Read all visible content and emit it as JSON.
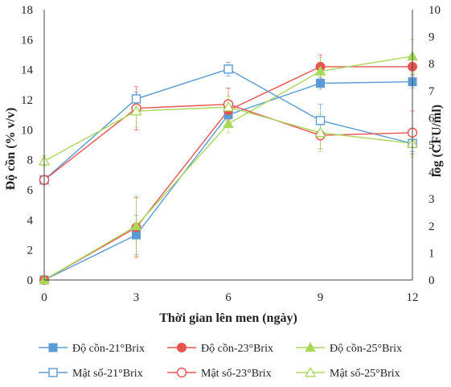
{
  "chart_data": {
    "type": "line",
    "title": "",
    "x": [
      0,
      3,
      6,
      9,
      12
    ],
    "xlabel": "Thời gian lên men (ngày)",
    "ylabel": "Độ cồn (% v/v)",
    "y2label": "log (CFU/ml)",
    "xticks": [
      "0",
      "3",
      "6",
      "9",
      "12"
    ],
    "xlim": [
      0,
      12
    ],
    "ylim": [
      0,
      18
    ],
    "yticks": [
      "0",
      "2",
      "4",
      "6",
      "8",
      "10",
      "12",
      "14",
      "16",
      "18"
    ],
    "y2lim": [
      0,
      10
    ],
    "y2ticks": [
      "0",
      "1",
      "2",
      "3",
      "4",
      "5",
      "6",
      "7",
      "8",
      "9",
      "10"
    ],
    "grid": false,
    "legend_position": "bottom",
    "series": [
      {
        "name": "Độ cồn-21°Brix",
        "axis": "left",
        "marker": "square",
        "filled": true,
        "color": "#5b9bd5",
        "values": [
          0,
          3.0,
          11.0,
          13.1,
          13.2
        ],
        "errors": [
          0.1,
          1.3,
          0.5,
          0.4,
          0.4
        ]
      },
      {
        "name": "Độ cồn-23°Brix",
        "axis": "left",
        "marker": "circle",
        "filled": true,
        "color": "#e8534f",
        "values": [
          0,
          3.5,
          11.3,
          14.2,
          14.2
        ],
        "errors": [
          0.1,
          2.0,
          0.6,
          0.8,
          0.5
        ]
      },
      {
        "name": "Độ cồn-25°Brix",
        "axis": "left",
        "marker": "triangle",
        "filled": true,
        "color": "#a9d85b",
        "values": [
          0,
          3.6,
          10.4,
          13.9,
          14.9
        ],
        "errors": [
          0.1,
          2.0,
          0.6,
          0.9,
          1.1
        ]
      },
      {
        "name": "Mật số-21°Brix",
        "axis": "right",
        "marker": "square",
        "filled": false,
        "color": "#5b9bd5",
        "values": [
          3.7,
          6.7,
          7.8,
          5.9,
          5.05
        ],
        "errors": [
          0.15,
          0.25,
          0.25,
          0.6,
          0.3
        ]
      },
      {
        "name": "Mật số-23°Brix",
        "axis": "right",
        "marker": "circle",
        "filled": false,
        "color": "#e8534f",
        "values": [
          3.7,
          6.35,
          6.5,
          5.35,
          5.45
        ],
        "errors": [
          0.15,
          0.8,
          0.6,
          0.5,
          0.8
        ]
      },
      {
        "name": "Mật số-25°Brix",
        "axis": "right",
        "marker": "triangle",
        "filled": false,
        "color": "#a9d85b",
        "values": [
          4.4,
          6.25,
          6.4,
          5.45,
          5.05
        ],
        "errors": [
          0.2,
          0.6,
          0.4,
          0.7,
          0.5
        ]
      }
    ]
  }
}
